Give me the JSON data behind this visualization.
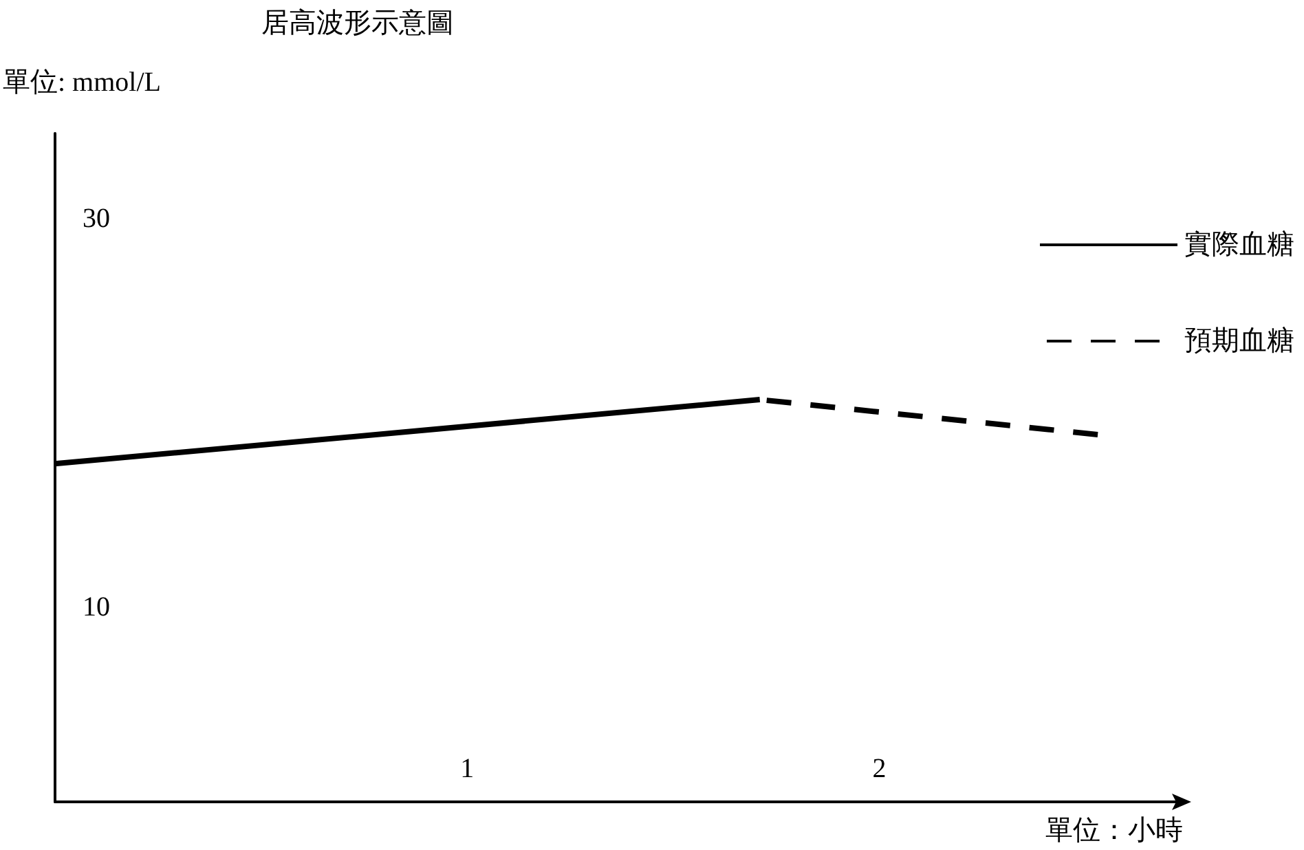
{
  "chart_data": {
    "type": "line",
    "title": "居高波形示意圖",
    "xlabel": "單位：小時",
    "ylabel": "單位: mmol/L",
    "xlim": [
      0,
      2.73
    ],
    "ylim": [
      0,
      34.4
    ],
    "xticks": [
      1,
      2
    ],
    "yticks": [
      10,
      30
    ],
    "grid": false,
    "legend": "top right",
    "marker": "none",
    "series": [
      {
        "name": "實際血糖",
        "color": "#000000",
        "line_style": "solid",
        "x": [
          0,
          1.71
        ],
        "values": [
          17.4,
          20.7
        ]
      },
      {
        "name": "預期血糖",
        "color": "#000000",
        "line_style": "dashed",
        "x": [
          1.71,
          2.53
        ],
        "values": [
          20.7,
          18.9
        ]
      }
    ]
  }
}
